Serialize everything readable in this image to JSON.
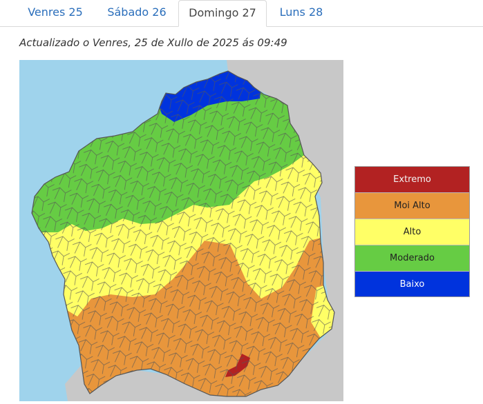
{
  "tabs": [
    {
      "label": "Venres 25",
      "active": false
    },
    {
      "label": "Sábado 26",
      "active": false
    },
    {
      "label": "Domingo 27",
      "active": true
    },
    {
      "label": "Luns 28",
      "active": false
    }
  ],
  "updated_text": "Actualizado o Venres, 25 de Xullo de 2025 ás 09:49",
  "legend": [
    {
      "label": "Extremo",
      "color": "#b22222"
    },
    {
      "label": "Moi Alto",
      "color": "#e8963c"
    },
    {
      "label": "Alto",
      "color": "#ffff66"
    },
    {
      "label": "Moderado",
      "color": "#66cc44"
    },
    {
      "label": "Baixo",
      "color": "#0033dd"
    }
  ],
  "map": {
    "sea_color": "#9fd3ec",
    "land_outside_color": "#c8c8c8",
    "border_color": "#555555"
  }
}
